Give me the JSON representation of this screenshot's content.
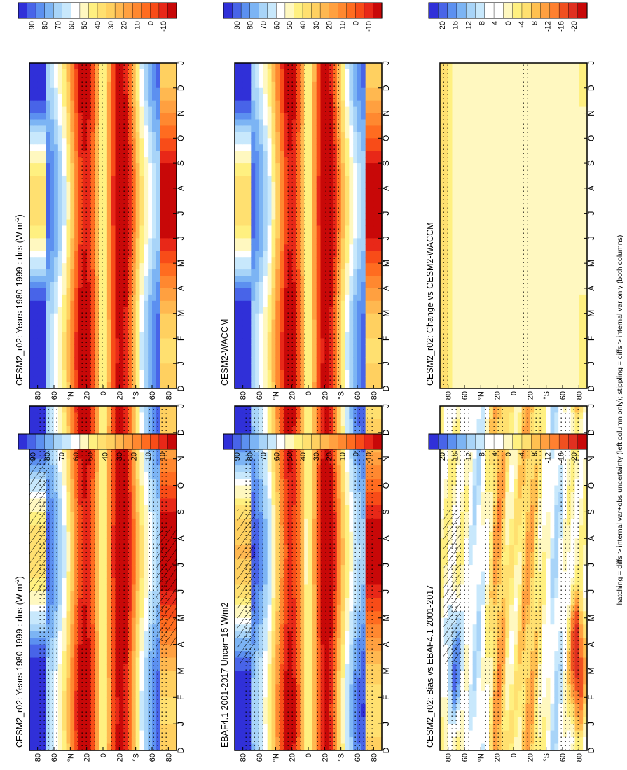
{
  "footnote": "hatching = diffs > internal var+obs uncertainty (left column only); stippling = diffs > internal var only (both columns)",
  "palettes": {
    "abs": [
      "#3030d8",
      "#4864e8",
      "#5c90f0",
      "#7cb4f4",
      "#a8d4f8",
      "#c8e8fc",
      "#ffffff",
      "#fff8c0",
      "#fff080",
      "#ffe070",
      "#ffd060",
      "#ffb850",
      "#ffa040",
      "#ff8830",
      "#ff6c20",
      "#f84c18",
      "#e82818",
      "#c80808"
    ],
    "diff": [
      "#3030d8",
      "#4864e8",
      "#5c90f0",
      "#7cb4f4",
      "#a8d4f8",
      "#c8e8fc",
      "#ffffff",
      "#ffffff",
      "#fff8c0",
      "#fff080",
      "#ffe070",
      "#ffc050",
      "#ffa040",
      "#ff8030",
      "#f05020",
      "#e03020",
      "#c80808"
    ]
  },
  "chart_data": [
    {
      "type": "heatmap",
      "id": "p1",
      "title": "CESM2_r02: Years 1980-1999 : rlns (W m",
      "title_sup": "-2",
      "title_tail": ")",
      "months": [
        "D",
        "J",
        "F",
        "M",
        "A",
        "M",
        "J",
        "J",
        "A",
        "S",
        "O",
        "N",
        "D",
        "J"
      ],
      "lat_ticks": [
        "80",
        "60",
        "°N",
        "20",
        "0",
        "20",
        "°S",
        "60",
        "80"
      ],
      "colorbar_ticks": [
        "90",
        "80",
        "70",
        "60",
        "50",
        "40",
        "30",
        "20",
        "10",
        "-10"
      ],
      "palette": "abs",
      "field": "abs",
      "amp": 1.0,
      "stipple": "dense",
      "hatch": "sparse"
    },
    {
      "type": "heatmap",
      "id": "p2",
      "title": "CESM2_r02: Years 1980-1999 : rlns (W m",
      "title_sup": "-2",
      "title_tail": ")",
      "months": [
        "D",
        "J",
        "F",
        "M",
        "A",
        "M",
        "J",
        "J",
        "A",
        "S",
        "O",
        "N",
        "D",
        "J"
      ],
      "lat_ticks": [
        "80",
        "60",
        "°N",
        "20",
        "0",
        "20",
        "°S",
        "60",
        "80"
      ],
      "colorbar_ticks": [
        "90",
        "80",
        "70",
        "60",
        "50",
        "40",
        "30",
        "20",
        "10",
        "0",
        "-10"
      ],
      "palette": "abs",
      "field": "abs2",
      "amp": 1.0,
      "stipple": "some",
      "hatch": "none"
    },
    {
      "type": "heatmap",
      "id": "p3",
      "title": "EBAF4.1 2001-2017 Uncer=15 W/m2",
      "months": [
        "D",
        "J",
        "F",
        "M",
        "A",
        "M",
        "J",
        "J",
        "A",
        "S",
        "O",
        "N",
        "D",
        "J"
      ],
      "lat_ticks": [
        "80",
        "60",
        "°N",
        "20",
        "0",
        "20",
        "°S",
        "60",
        "80"
      ],
      "colorbar_ticks": [
        "90",
        "80",
        "70",
        "60",
        "50",
        "40",
        "30",
        "20",
        "10",
        "0",
        "-10"
      ],
      "palette": "abs",
      "field": "obs",
      "amp": 1.0,
      "stipple": "dense",
      "hatch": "some"
    },
    {
      "type": "heatmap",
      "id": "p4",
      "title": "CESM2-WACCM",
      "months": [
        "D",
        "J",
        "F",
        "M",
        "A",
        "M",
        "J",
        "J",
        "A",
        "S",
        "O",
        "N",
        "D",
        "J"
      ],
      "lat_ticks": [
        "80",
        "60",
        "°N",
        "20",
        "0",
        "20",
        "°S",
        "60",
        "80"
      ],
      "colorbar_ticks": [
        "90",
        "80",
        "70",
        "60",
        "50",
        "40",
        "30",
        "20",
        "10",
        "0",
        "-10"
      ],
      "palette": "abs",
      "field": "abs2",
      "amp": 1.0,
      "stipple": "some",
      "hatch": "none"
    },
    {
      "type": "heatmap",
      "id": "p5",
      "title": "CESM2_r02: Bias vs EBAF4.1 2001-2017",
      "months": [
        "D",
        "J",
        "F",
        "M",
        "A",
        "M",
        "J",
        "J",
        "A",
        "S",
        "O",
        "N",
        "D",
        "J"
      ],
      "lat_ticks": [
        "80",
        "60",
        "°N",
        "20",
        "0",
        "20",
        "°S",
        "60",
        "80"
      ],
      "colorbar_ticks": [
        "20",
        "16",
        "12",
        "8",
        "4",
        "0",
        "-4",
        "-8",
        "-12",
        "-16",
        "-20"
      ],
      "palette": "diff",
      "field": "bias",
      "amp": 1.0,
      "stipple": "dense",
      "hatch": "some"
    },
    {
      "type": "heatmap",
      "id": "p6",
      "title": "CESM2_r02: Change vs CESM2-WACCM",
      "months": [
        "D",
        "J",
        "F",
        "M",
        "A",
        "M",
        "J",
        "J",
        "A",
        "S",
        "O",
        "N",
        "D",
        "J"
      ],
      "lat_ticks": [
        "80",
        "60",
        "°N",
        "20",
        "0",
        "20",
        "°S",
        "60",
        "80"
      ],
      "colorbar_ticks": [
        "20",
        "16",
        "12",
        "8",
        "4",
        "0",
        "-4",
        "-8",
        "-12",
        "-16",
        "-20"
      ],
      "palette": "diff",
      "field": "change",
      "amp": 1.0,
      "stipple": "sparse",
      "hatch": "none"
    }
  ]
}
